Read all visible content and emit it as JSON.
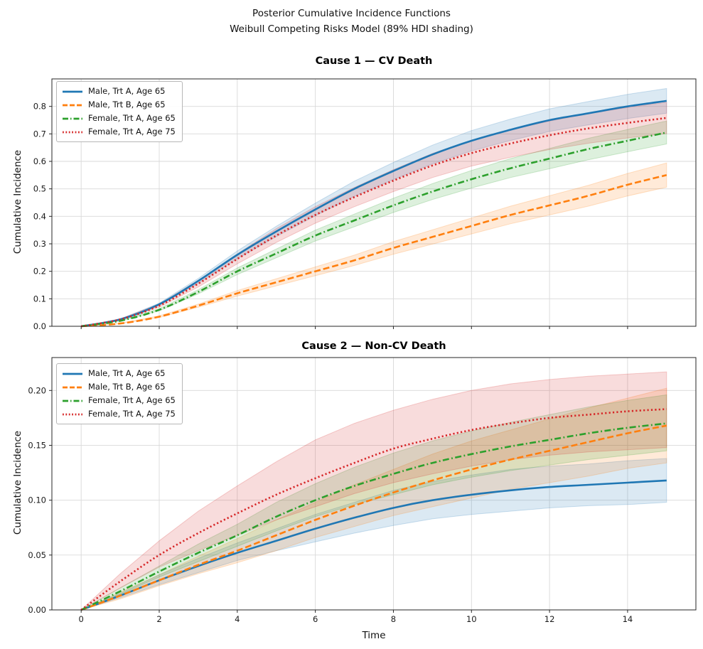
{
  "suptitle_line1": "Posterior Cumulative Incidence Functions",
  "suptitle_line2": "Weibull Competing Risks Model (89% HDI shading)",
  "xlabel": "Time",
  "hdi_level": "89%",
  "chart_data": [
    {
      "type": "line",
      "title": "Cause 1 — CV Death",
      "ylabel": "Cumulative Incidence",
      "x": [
        0,
        1,
        2,
        3,
        4,
        5,
        6,
        7,
        8,
        9,
        10,
        11,
        12,
        13,
        14,
        15
      ],
      "xlim": [
        -0.75,
        15.75
      ],
      "ylim": [
        0,
        0.9
      ],
      "xticks": [
        0,
        2,
        4,
        6,
        8,
        10,
        12,
        14
      ],
      "xtick_labels": [
        "0",
        "2",
        "4",
        "6",
        "8",
        "10",
        "12",
        "14"
      ],
      "show_xtick_labels": false,
      "yticks": [
        0.0,
        0.1,
        0.2,
        0.3,
        0.4,
        0.5,
        0.6,
        0.7,
        0.8
      ],
      "ytick_labels": [
        "0.0",
        "0.1",
        "0.2",
        "0.3",
        "0.4",
        "0.5",
        "0.6",
        "0.7",
        "0.8"
      ],
      "grid": true,
      "legend_position": "upper left",
      "series": [
        {
          "name": "Male, Trt A, Age 65",
          "color": "#1f77b4",
          "linestyle": "solid",
          "mean": [
            0,
            0.025,
            0.08,
            0.165,
            0.26,
            0.345,
            0.425,
            0.5,
            0.565,
            0.625,
            0.675,
            0.715,
            0.75,
            0.775,
            0.8,
            0.82
          ],
          "lo": [
            0,
            0.024,
            0.076,
            0.156,
            0.246,
            0.326,
            0.402,
            0.473,
            0.534,
            0.591,
            0.638,
            0.676,
            0.709,
            0.733,
            0.756,
            0.775
          ],
          "hi": [
            0,
            0.026,
            0.084,
            0.174,
            0.274,
            0.364,
            0.448,
            0.528,
            0.596,
            0.659,
            0.712,
            0.754,
            0.791,
            0.818,
            0.844,
            0.865
          ]
        },
        {
          "name": "Male, Trt B, Age 65",
          "color": "#ff7f0e",
          "linestyle": "dashed",
          "mean": [
            0,
            0.01,
            0.035,
            0.075,
            0.12,
            0.16,
            0.2,
            0.24,
            0.285,
            0.325,
            0.365,
            0.405,
            0.44,
            0.475,
            0.515,
            0.55
          ],
          "lo": [
            0,
            0.009,
            0.032,
            0.069,
            0.11,
            0.147,
            0.184,
            0.221,
            0.262,
            0.299,
            0.336,
            0.373,
            0.405,
            0.437,
            0.474,
            0.506
          ],
          "hi": [
            0,
            0.011,
            0.038,
            0.081,
            0.13,
            0.173,
            0.216,
            0.259,
            0.308,
            0.351,
            0.394,
            0.437,
            0.475,
            0.513,
            0.556,
            0.594
          ]
        },
        {
          "name": "Female, Trt A, Age 65",
          "color": "#2ca02c",
          "linestyle": "dashdot",
          "mean": [
            0,
            0.02,
            0.06,
            0.125,
            0.2,
            0.265,
            0.33,
            0.385,
            0.44,
            0.49,
            0.535,
            0.575,
            0.61,
            0.645,
            0.675,
            0.705
          ],
          "lo": [
            0,
            0.019,
            0.056,
            0.118,
            0.188,
            0.249,
            0.31,
            0.362,
            0.414,
            0.461,
            0.503,
            0.541,
            0.573,
            0.606,
            0.635,
            0.663
          ],
          "hi": [
            0,
            0.021,
            0.064,
            0.133,
            0.212,
            0.281,
            0.35,
            0.408,
            0.466,
            0.519,
            0.567,
            0.61,
            0.647,
            0.684,
            0.716,
            0.747
          ]
        },
        {
          "name": "Female, Trt A, Age 75",
          "color": "#d62728",
          "linestyle": "dotted",
          "mean": [
            0,
            0.025,
            0.075,
            0.155,
            0.245,
            0.33,
            0.405,
            0.47,
            0.53,
            0.585,
            0.63,
            0.665,
            0.695,
            0.72,
            0.74,
            0.758
          ],
          "lo": [
            0,
            0.023,
            0.069,
            0.143,
            0.227,
            0.305,
            0.375,
            0.435,
            0.49,
            0.541,
            0.583,
            0.615,
            0.643,
            0.666,
            0.685,
            0.701
          ],
          "hi": [
            0,
            0.027,
            0.081,
            0.167,
            0.263,
            0.355,
            0.435,
            0.505,
            0.57,
            0.629,
            0.677,
            0.715,
            0.747,
            0.774,
            0.796,
            0.815
          ]
        }
      ]
    },
    {
      "type": "line",
      "title": "Cause 2 — Non-CV Death",
      "ylabel": "Cumulative Incidence",
      "x": [
        0,
        1,
        2,
        3,
        4,
        5,
        6,
        7,
        8,
        9,
        10,
        11,
        12,
        13,
        14,
        15
      ],
      "xlim": [
        -0.75,
        15.75
      ],
      "ylim": [
        0,
        0.23
      ],
      "xticks": [
        0,
        2,
        4,
        6,
        8,
        10,
        12,
        14
      ],
      "xtick_labels": [
        "0",
        "2",
        "4",
        "6",
        "8",
        "10",
        "12",
        "14"
      ],
      "show_xtick_labels": true,
      "yticks": [
        0.0,
        0.05,
        0.1,
        0.15,
        0.2
      ],
      "ytick_labels": [
        "0.00",
        "0.05",
        "0.10",
        "0.15",
        "0.20"
      ],
      "grid": true,
      "legend_position": "upper left",
      "series": [
        {
          "name": "Male, Trt A, Age 65",
          "color": "#1f77b4",
          "linestyle": "solid",
          "mean": [
            0,
            0.013,
            0.027,
            0.04,
            0.052,
            0.063,
            0.074,
            0.084,
            0.093,
            0.1,
            0.105,
            0.109,
            0.112,
            0.114,
            0.116,
            0.118
          ],
          "lo": [
            0,
            0.011,
            0.023,
            0.034,
            0.045,
            0.054,
            0.062,
            0.07,
            0.077,
            0.083,
            0.087,
            0.09,
            0.093,
            0.095,
            0.096,
            0.098
          ],
          "hi": [
            0,
            0.015,
            0.032,
            0.047,
            0.061,
            0.074,
            0.087,
            0.098,
            0.109,
            0.117,
            0.123,
            0.128,
            0.131,
            0.133,
            0.136,
            0.138
          ]
        },
        {
          "name": "Male, Trt B, Age 65",
          "color": "#ff7f0e",
          "linestyle": "dashed",
          "mean": [
            0,
            0.013,
            0.027,
            0.041,
            0.054,
            0.068,
            0.082,
            0.095,
            0.107,
            0.118,
            0.128,
            0.137,
            0.145,
            0.153,
            0.161,
            0.168
          ],
          "lo": [
            0,
            0.01,
            0.022,
            0.033,
            0.043,
            0.054,
            0.066,
            0.076,
            0.086,
            0.094,
            0.102,
            0.11,
            0.116,
            0.122,
            0.129,
            0.134
          ],
          "hi": [
            0,
            0.016,
            0.032,
            0.049,
            0.065,
            0.082,
            0.098,
            0.114,
            0.128,
            0.142,
            0.154,
            0.164,
            0.174,
            0.184,
            0.193,
            0.202
          ]
        },
        {
          "name": "Female, Trt A, Age 65",
          "color": "#2ca02c",
          "linestyle": "dashdot",
          "mean": [
            0,
            0.017,
            0.035,
            0.052,
            0.068,
            0.085,
            0.1,
            0.113,
            0.124,
            0.134,
            0.142,
            0.149,
            0.155,
            0.161,
            0.166,
            0.17
          ],
          "lo": [
            0,
            0.014,
            0.03,
            0.044,
            0.058,
            0.072,
            0.085,
            0.096,
            0.105,
            0.114,
            0.121,
            0.127,
            0.132,
            0.137,
            0.141,
            0.145
          ],
          "hi": [
            0,
            0.02,
            0.04,
            0.06,
            0.078,
            0.098,
            0.115,
            0.13,
            0.143,
            0.154,
            0.163,
            0.171,
            0.178,
            0.185,
            0.191,
            0.196
          ]
        },
        {
          "name": "Female, Trt A, Age 75",
          "color": "#d62728",
          "linestyle": "dotted",
          "mean": [
            0,
            0.026,
            0.05,
            0.07,
            0.088,
            0.105,
            0.12,
            0.134,
            0.147,
            0.156,
            0.164,
            0.17,
            0.175,
            0.178,
            0.181,
            0.183
          ],
          "lo": [
            0,
            0.02,
            0.039,
            0.054,
            0.068,
            0.082,
            0.094,
            0.106,
            0.116,
            0.124,
            0.131,
            0.137,
            0.141,
            0.144,
            0.146,
            0.148
          ],
          "hi": [
            0,
            0.033,
            0.063,
            0.09,
            0.113,
            0.135,
            0.155,
            0.17,
            0.182,
            0.192,
            0.2,
            0.206,
            0.21,
            0.213,
            0.215,
            0.217
          ]
        }
      ]
    }
  ]
}
